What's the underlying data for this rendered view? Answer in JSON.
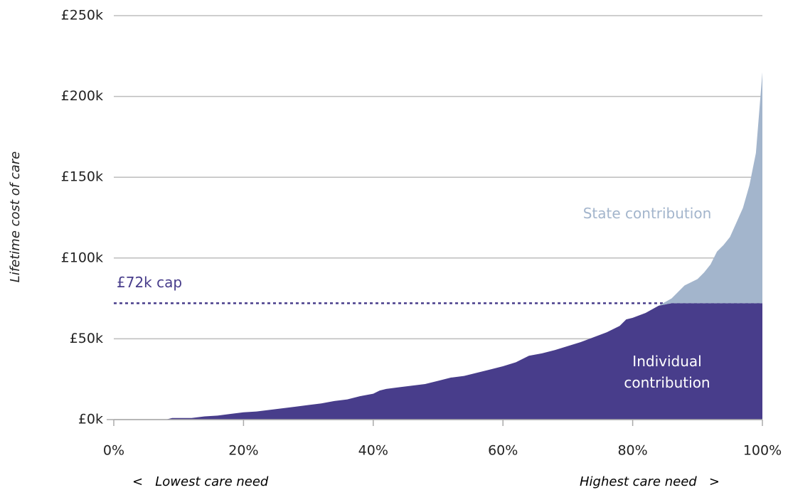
{
  "chart_data": {
    "type": "area",
    "stacked": true,
    "ylabel": "Lifetime cost of care",
    "x": [
      0,
      8,
      9,
      12,
      14,
      16,
      18,
      20,
      22,
      24,
      26,
      28,
      30,
      32,
      34,
      36,
      38,
      40,
      41,
      42,
      44,
      46,
      48,
      50,
      52,
      54,
      56,
      58,
      60,
      62,
      64,
      66,
      68,
      70,
      72,
      74,
      76,
      78,
      79,
      80,
      82,
      84,
      86,
      88,
      90,
      91,
      92,
      93,
      94,
      95,
      96,
      97,
      98,
      99,
      100
    ],
    "series": [
      {
        "name": "Individual contribution",
        "color": "#483d8b",
        "values": [
          0,
          0,
          1,
          1,
          2,
          2.5,
          3.5,
          4.5,
          5,
          6,
          7,
          8,
          9,
          10,
          11.5,
          12.5,
          14.5,
          16,
          18,
          19,
          20,
          21,
          22,
          24,
          26,
          27,
          29,
          31,
          33,
          35.5,
          39.5,
          41,
          43,
          45.5,
          48,
          51,
          54,
          58,
          62,
          63,
          66,
          70.5,
          72,
          72,
          72,
          72,
          72,
          72,
          72,
          72,
          72,
          72,
          72,
          72,
          72
        ]
      },
      {
        "name": "State contribution",
        "color": "#a3b5cc",
        "values": [
          0,
          0,
          0,
          0,
          0,
          0,
          0,
          0,
          0,
          0,
          0,
          0,
          0,
          0,
          0,
          0,
          0,
          0,
          0,
          0,
          0,
          0,
          0,
          0,
          0,
          0,
          0,
          0,
          0,
          0,
          0,
          0,
          0,
          0,
          0,
          0,
          0,
          0,
          0,
          0,
          0,
          0,
          3,
          11,
          15,
          19,
          24,
          32,
          36,
          41,
          50,
          59,
          73,
          93,
          143
        ]
      }
    ],
    "cap": {
      "value": 72,
      "label": "£72k cap",
      "color": "#483d8b"
    },
    "xlim": [
      0,
      100
    ],
    "xticks": [
      {
        "value": 0,
        "label": "0%"
      },
      {
        "value": 20,
        "label": "20%"
      },
      {
        "value": 40,
        "label": "40%"
      },
      {
        "value": 60,
        "label": "60%"
      },
      {
        "value": 80,
        "label": "80%"
      },
      {
        "value": 100,
        "label": "100%"
      }
    ],
    "ylim": [
      0,
      250
    ],
    "yticks": [
      {
        "value": 0,
        "label": "£0k"
      },
      {
        "value": 50,
        "label": "£50k"
      },
      {
        "value": 100,
        "label": "£100k"
      },
      {
        "value": 150,
        "label": "£150k"
      },
      {
        "value": 200,
        "label": "£200k"
      },
      {
        "value": 250,
        "label": "£250k"
      }
    ],
    "grid": true,
    "x_annotations": [
      "<   Lowest care need",
      "Highest care need   >"
    ]
  }
}
